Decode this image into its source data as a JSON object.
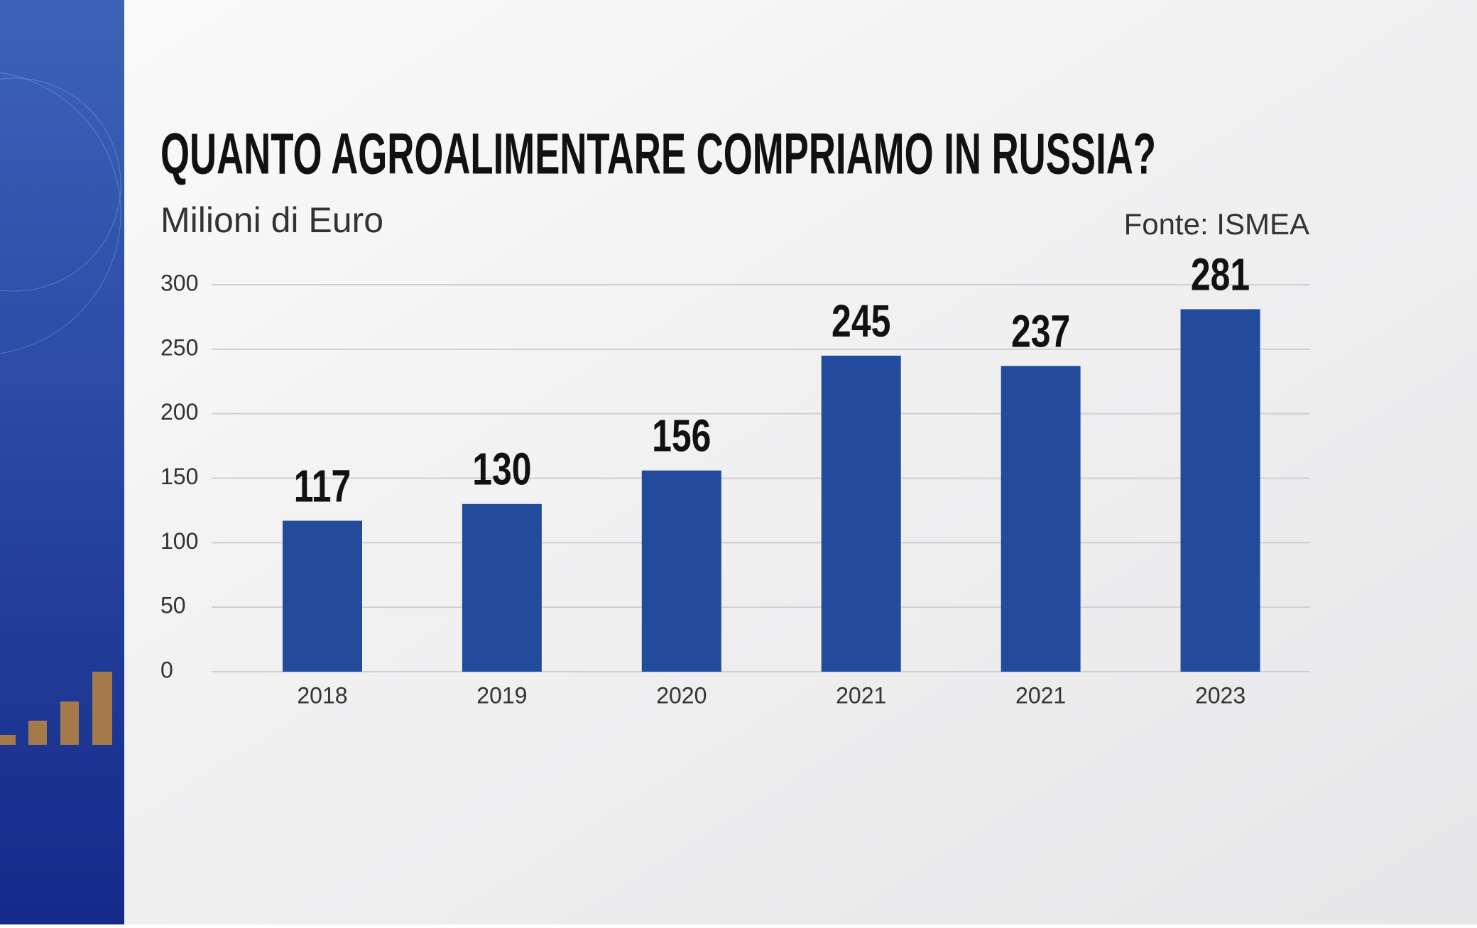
{
  "chart_data": {
    "type": "bar",
    "title": "QUANTO AGROALIMENTARE COMPRIAMO IN RUSSIA?",
    "subtitle": "Milioni di Euro",
    "source": "Fonte: ISMEA",
    "categories": [
      "2018",
      "2019",
      "2020",
      "2021",
      "2021",
      "2023"
    ],
    "values": [
      117,
      130,
      156,
      245,
      237,
      281
    ],
    "color": "#234b9c",
    "ylim": [
      0,
      300
    ],
    "yticks": [
      0,
      50,
      100,
      150,
      200,
      250,
      300
    ],
    "grid": true
  }
}
